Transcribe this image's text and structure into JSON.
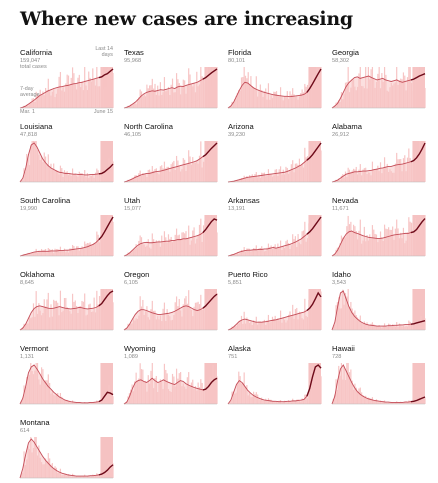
{
  "title": "Where new cases are increasing",
  "legend": {
    "total_label": "total cases",
    "avg_label_line1": "7-day",
    "avg_label_line2": "average",
    "recent_label_line1": "Last 14",
    "recent_label_line2": "days",
    "x_start": "Mar. 1",
    "x_end": "June 15"
  },
  "colors": {
    "bar": "#f7c5c5",
    "band": "#ec8f8f",
    "line": "#c44d58",
    "line_recent": "#6e0b1a",
    "baseline": "#b8b8b8",
    "state_text": "#121212",
    "total_text": "#8a8a8a"
  },
  "chart_data": [
    {
      "type": "area",
      "state": "California",
      "total": "159,047",
      "shape": [
        0.0,
        0.02,
        0.05,
        0.1,
        0.15,
        0.2,
        0.26,
        0.32,
        0.36,
        0.4,
        0.44,
        0.47,
        0.5,
        0.52,
        0.54,
        0.55,
        0.57,
        0.58,
        0.6,
        0.62,
        0.63,
        0.65,
        0.66,
        0.68,
        0.7,
        0.72,
        0.74,
        0.76,
        0.78,
        0.8,
        0.85,
        0.88,
        0.94,
        1.0
      ],
      "ylim": [
        0,
        1
      ]
    },
    {
      "type": "area",
      "state": "Texas",
      "total": "95,968",
      "shape": [
        0.0,
        0.02,
        0.05,
        0.1,
        0.15,
        0.22,
        0.3,
        0.36,
        0.4,
        0.42,
        0.44,
        0.43,
        0.45,
        0.47,
        0.46,
        0.48,
        0.5,
        0.52,
        0.5,
        0.54,
        0.56,
        0.55,
        0.58,
        0.6,
        0.62,
        0.64,
        0.66,
        0.7,
        0.74,
        0.78,
        0.84,
        0.9,
        0.95,
        1.0
      ],
      "ylim": [
        0,
        1
      ]
    },
    {
      "type": "area",
      "state": "Florida",
      "total": "80,101",
      "shape": [
        0.0,
        0.05,
        0.15,
        0.3,
        0.45,
        0.58,
        0.66,
        0.64,
        0.58,
        0.52,
        0.48,
        0.45,
        0.42,
        0.4,
        0.38,
        0.36,
        0.34,
        0.33,
        0.32,
        0.31,
        0.3,
        0.3,
        0.29,
        0.3,
        0.31,
        0.32,
        0.33,
        0.35,
        0.4,
        0.5,
        0.62,
        0.75,
        0.88,
        1.0
      ],
      "ylim": [
        0,
        1
      ]
    },
    {
      "type": "area",
      "state": "Georgia",
      "total": "58,302",
      "shape": [
        0.0,
        0.05,
        0.12,
        0.25,
        0.4,
        0.55,
        0.65,
        0.72,
        0.78,
        0.8,
        0.76,
        0.78,
        0.8,
        0.82,
        0.78,
        0.75,
        0.72,
        0.74,
        0.76,
        0.72,
        0.7,
        0.68,
        0.7,
        0.72,
        0.68,
        0.66,
        0.68,
        0.7,
        0.72,
        0.74,
        0.78,
        0.82,
        0.85,
        0.88
      ],
      "ylim": [
        0,
        1
      ]
    },
    {
      "type": "area",
      "state": "Louisiana",
      "total": "47,818",
      "shape": [
        0.0,
        0.1,
        0.35,
        0.7,
        0.95,
        1.0,
        0.9,
        0.75,
        0.6,
        0.5,
        0.42,
        0.36,
        0.32,
        0.28,
        0.25,
        0.24,
        0.22,
        0.22,
        0.21,
        0.2,
        0.2,
        0.19,
        0.19,
        0.18,
        0.18,
        0.19,
        0.19,
        0.2,
        0.21,
        0.22,
        0.26,
        0.32,
        0.38,
        0.46
      ],
      "ylim": [
        0,
        1
      ]
    },
    {
      "type": "area",
      "state": "North Carolina",
      "total": "46,105",
      "shape": [
        0.0,
        0.02,
        0.05,
        0.08,
        0.12,
        0.15,
        0.18,
        0.2,
        0.22,
        0.22,
        0.24,
        0.26,
        0.27,
        0.28,
        0.3,
        0.32,
        0.34,
        0.36,
        0.38,
        0.4,
        0.42,
        0.44,
        0.46,
        0.48,
        0.5,
        0.52,
        0.55,
        0.6,
        0.65,
        0.7,
        0.78,
        0.86,
        0.93,
        1.0
      ],
      "ylim": [
        0,
        1
      ]
    },
    {
      "type": "area",
      "state": "Arizona",
      "total": "39,230",
      "shape": [
        0.0,
        0.01,
        0.02,
        0.04,
        0.06,
        0.08,
        0.1,
        0.12,
        0.13,
        0.14,
        0.15,
        0.16,
        0.17,
        0.18,
        0.19,
        0.2,
        0.21,
        0.22,
        0.23,
        0.24,
        0.25,
        0.27,
        0.3,
        0.33,
        0.36,
        0.4,
        0.44,
        0.5,
        0.56,
        0.62,
        0.7,
        0.8,
        0.9,
        1.0
      ],
      "ylim": [
        0,
        1
      ]
    },
    {
      "type": "area",
      "state": "Alabama",
      "total": "26,912",
      "shape": [
        0.0,
        0.02,
        0.05,
        0.1,
        0.15,
        0.2,
        0.22,
        0.24,
        0.26,
        0.26,
        0.27,
        0.28,
        0.28,
        0.29,
        0.3,
        0.32,
        0.33,
        0.35,
        0.36,
        0.38,
        0.4,
        0.4,
        0.42,
        0.44,
        0.45,
        0.46,
        0.48,
        0.5,
        0.52,
        0.55,
        0.62,
        0.72,
        0.85,
        1.0
      ],
      "ylim": [
        0,
        1
      ]
    },
    {
      "type": "area",
      "state": "South Carolina",
      "total": "19,990",
      "shape": [
        0.0,
        0.02,
        0.04,
        0.06,
        0.08,
        0.1,
        0.11,
        0.12,
        0.12,
        0.12,
        0.12,
        0.13,
        0.13,
        0.13,
        0.14,
        0.14,
        0.15,
        0.15,
        0.16,
        0.17,
        0.18,
        0.19,
        0.2,
        0.22,
        0.24,
        0.27,
        0.3,
        0.35,
        0.42,
        0.5,
        0.62,
        0.75,
        0.88,
        1.0
      ],
      "ylim": [
        0,
        1
      ]
    },
    {
      "type": "area",
      "state": "Utah",
      "total": "15,077",
      "shape": [
        0.0,
        0.03,
        0.08,
        0.15,
        0.22,
        0.28,
        0.32,
        0.34,
        0.35,
        0.34,
        0.34,
        0.35,
        0.36,
        0.36,
        0.37,
        0.38,
        0.38,
        0.4,
        0.4,
        0.42,
        0.42,
        0.44,
        0.44,
        0.46,
        0.48,
        0.5,
        0.52,
        0.55,
        0.6,
        0.68,
        0.78,
        0.88,
        0.95,
        0.92
      ],
      "ylim": [
        0,
        1
      ]
    },
    {
      "type": "area",
      "state": "Arkansas",
      "total": "13,191",
      "shape": [
        0.0,
        0.02,
        0.04,
        0.07,
        0.1,
        0.12,
        0.14,
        0.15,
        0.15,
        0.16,
        0.16,
        0.17,
        0.17,
        0.18,
        0.18,
        0.2,
        0.22,
        0.2,
        0.22,
        0.24,
        0.26,
        0.28,
        0.3,
        0.33,
        0.36,
        0.4,
        0.44,
        0.5,
        0.56,
        0.62,
        0.7,
        0.8,
        0.9,
        1.0
      ],
      "ylim": [
        0,
        1
      ]
    },
    {
      "type": "area",
      "state": "Nevada",
      "total": "11,671",
      "shape": [
        0.0,
        0.05,
        0.15,
        0.3,
        0.45,
        0.56,
        0.62,
        0.64,
        0.6,
        0.58,
        0.55,
        0.52,
        0.5,
        0.48,
        0.47,
        0.46,
        0.45,
        0.45,
        0.46,
        0.48,
        0.5,
        0.52,
        0.54,
        0.55,
        0.56,
        0.57,
        0.58,
        0.58,
        0.6,
        0.62,
        0.68,
        0.78,
        0.88,
        0.96
      ],
      "ylim": [
        0,
        1
      ]
    },
    {
      "type": "area",
      "state": "Oklahoma",
      "total": "8,645",
      "shape": [
        0.0,
        0.05,
        0.15,
        0.3,
        0.45,
        0.55,
        0.6,
        0.62,
        0.6,
        0.58,
        0.56,
        0.55,
        0.56,
        0.58,
        0.6,
        0.58,
        0.56,
        0.55,
        0.54,
        0.55,
        0.56,
        0.58,
        0.57,
        0.55,
        0.54,
        0.55,
        0.56,
        0.58,
        0.62,
        0.68,
        0.78,
        0.88,
        0.96,
        1.0
      ],
      "ylim": [
        0,
        1
      ]
    },
    {
      "type": "area",
      "state": "Oregon",
      "total": "6,105",
      "shape": [
        0.0,
        0.05,
        0.15,
        0.28,
        0.4,
        0.48,
        0.52,
        0.52,
        0.5,
        0.47,
        0.44,
        0.42,
        0.4,
        0.4,
        0.41,
        0.42,
        0.43,
        0.45,
        0.48,
        0.52,
        0.56,
        0.6,
        0.62,
        0.6,
        0.56,
        0.52,
        0.5,
        0.52,
        0.56,
        0.62,
        0.7,
        0.78,
        0.86,
        0.92
      ],
      "ylim": [
        0,
        1
      ]
    },
    {
      "type": "area",
      "state": "Puerto Rico",
      "total": "5,851",
      "shape": [
        0.0,
        0.03,
        0.08,
        0.15,
        0.22,
        0.26,
        0.28,
        0.26,
        0.24,
        0.22,
        0.2,
        0.2,
        0.2,
        0.21,
        0.22,
        0.24,
        0.25,
        0.26,
        0.28,
        0.3,
        0.32,
        0.34,
        0.36,
        0.38,
        0.4,
        0.42,
        0.44,
        0.46,
        0.5,
        0.56,
        0.66,
        0.8,
        0.95,
        0.85
      ],
      "ylim": [
        0,
        1
      ]
    },
    {
      "type": "area",
      "state": "Idaho",
      "total": "3,543",
      "shape": [
        0.0,
        0.2,
        0.6,
        0.95,
        1.0,
        0.8,
        0.6,
        0.45,
        0.35,
        0.28,
        0.22,
        0.18,
        0.15,
        0.13,
        0.12,
        0.11,
        0.1,
        0.1,
        0.1,
        0.1,
        0.11,
        0.11,
        0.12,
        0.12,
        0.13,
        0.13,
        0.14,
        0.14,
        0.15,
        0.16,
        0.18,
        0.2,
        0.22,
        0.24
      ],
      "ylim": [
        0,
        1
      ]
    },
    {
      "type": "area",
      "state": "Vermont",
      "total": "1,131",
      "shape": [
        0.0,
        0.15,
        0.45,
        0.8,
        0.95,
        1.0,
        0.9,
        0.78,
        0.65,
        0.55,
        0.45,
        0.38,
        0.3,
        0.24,
        0.18,
        0.14,
        0.1,
        0.08,
        0.06,
        0.05,
        0.04,
        0.04,
        0.03,
        0.03,
        0.03,
        0.04,
        0.04,
        0.05,
        0.06,
        0.1,
        0.2,
        0.3,
        0.28,
        0.24
      ],
      "ylim": [
        0,
        1
      ]
    },
    {
      "type": "area",
      "state": "Wyoming",
      "total": "1,089",
      "shape": [
        0.0,
        0.05,
        0.2,
        0.4,
        0.55,
        0.6,
        0.62,
        0.58,
        0.55,
        0.6,
        0.66,
        0.6,
        0.55,
        0.58,
        0.62,
        0.58,
        0.55,
        0.52,
        0.5,
        0.55,
        0.6,
        0.58,
        0.52,
        0.48,
        0.45,
        0.42,
        0.4,
        0.38,
        0.36,
        0.38,
        0.45,
        0.55,
        0.62,
        0.66
      ],
      "ylim": [
        0,
        1
      ]
    },
    {
      "type": "area",
      "state": "Alaska",
      "total": "751",
      "shape": [
        0.0,
        0.1,
        0.3,
        0.5,
        0.6,
        0.55,
        0.45,
        0.35,
        0.28,
        0.22,
        0.18,
        0.15,
        0.12,
        0.1,
        0.09,
        0.08,
        0.07,
        0.07,
        0.06,
        0.06,
        0.06,
        0.07,
        0.07,
        0.08,
        0.08,
        0.09,
        0.1,
        0.12,
        0.2,
        0.4,
        0.7,
        0.95,
        1.0,
        0.92
      ],
      "ylim": [
        0,
        1
      ]
    },
    {
      "type": "area",
      "state": "Hawaii",
      "total": "728",
      "shape": [
        0.0,
        0.2,
        0.6,
        0.9,
        1.0,
        0.85,
        0.7,
        0.55,
        0.42,
        0.32,
        0.25,
        0.2,
        0.16,
        0.13,
        0.11,
        0.09,
        0.08,
        0.07,
        0.06,
        0.05,
        0.05,
        0.04,
        0.04,
        0.04,
        0.04,
        0.04,
        0.05,
        0.05,
        0.06,
        0.07,
        0.09,
        0.12,
        0.15,
        0.18
      ],
      "ylim": [
        0,
        1
      ]
    },
    {
      "type": "area",
      "state": "Montana",
      "total": "614",
      "shape": [
        0.0,
        0.25,
        0.6,
        0.9,
        1.0,
        0.92,
        0.8,
        0.68,
        0.56,
        0.46,
        0.38,
        0.3,
        0.24,
        0.19,
        0.15,
        0.12,
        0.1,
        0.08,
        0.07,
        0.06,
        0.05,
        0.05,
        0.05,
        0.05,
        0.05,
        0.06,
        0.06,
        0.07,
        0.08,
        0.1,
        0.14,
        0.2,
        0.28,
        0.34
      ],
      "ylim": [
        0,
        1
      ]
    }
  ]
}
